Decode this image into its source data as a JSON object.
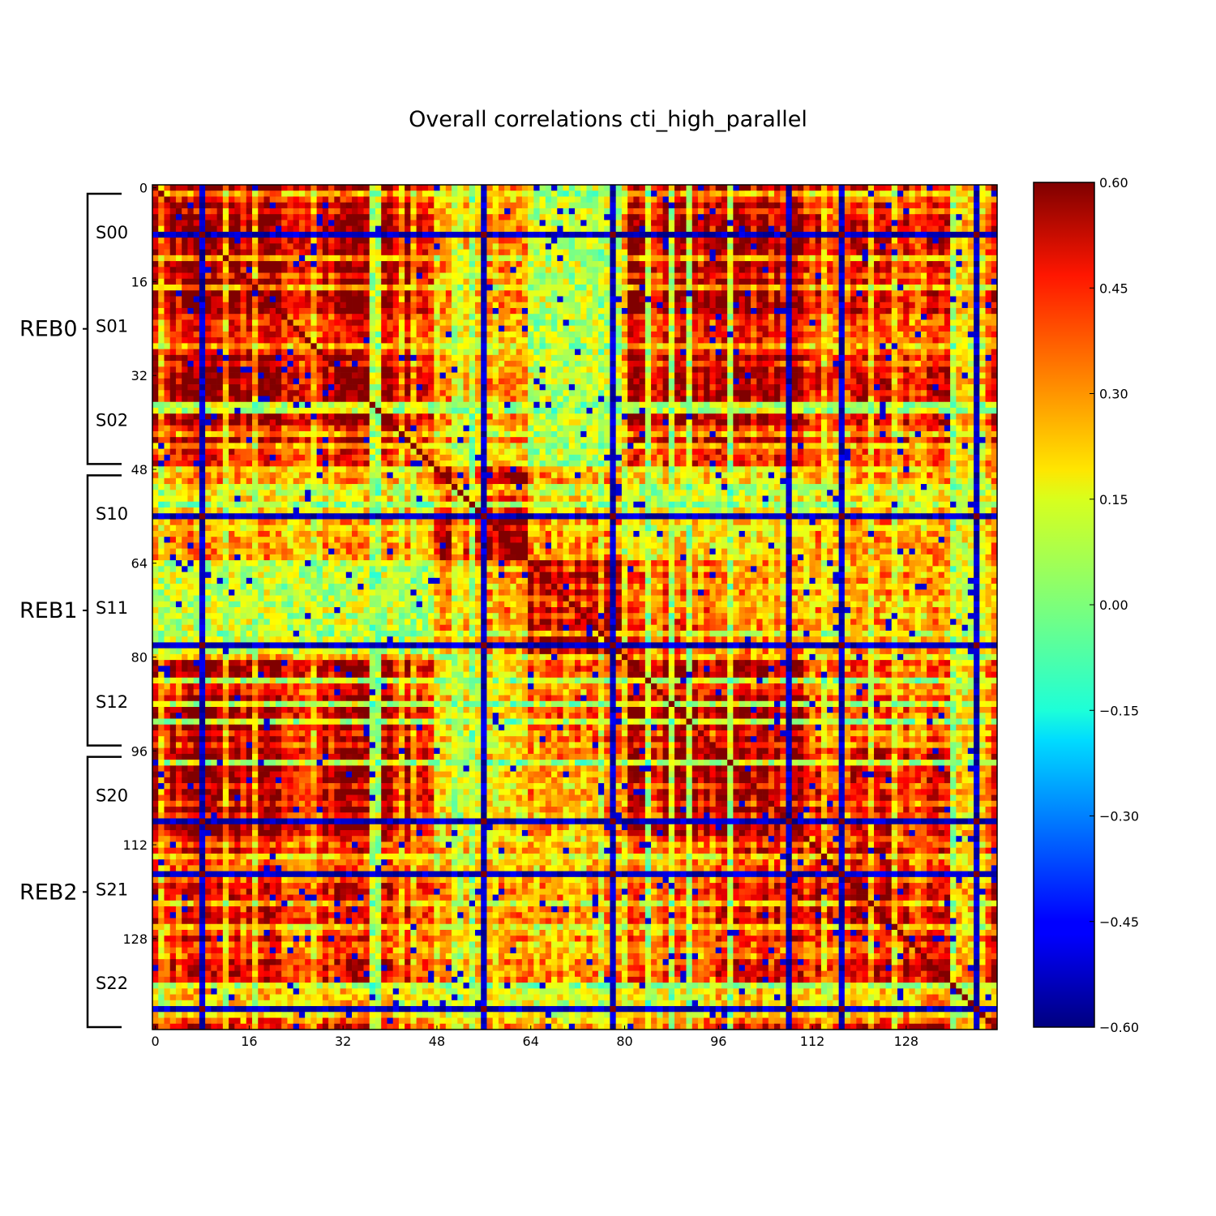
{
  "chart_data": {
    "type": "heatmap",
    "title": "Overall correlations cti_high_parallel",
    "size": 144,
    "xlabel": "",
    "ylabel": "",
    "x_ticks": [
      0,
      16,
      32,
      48,
      64,
      80,
      96,
      112,
      128
    ],
    "y_ticks": [
      0,
      16,
      32,
      48,
      64,
      80,
      96,
      112,
      128
    ],
    "colorbar": {
      "colormap": "jet",
      "vmin": -0.6,
      "vmax": 0.6,
      "ticks": [
        0.6,
        0.45,
        0.3,
        0.15,
        0.0,
        -0.15,
        -0.3,
        -0.45,
        -0.6
      ],
      "tick_labels": [
        "0.60",
        "0.45",
        "0.30",
        "0.15",
        "0.00",
        "−0.15",
        "−0.30",
        "−0.45",
        "−0.60"
      ]
    },
    "groups": [
      {
        "label": "REB0",
        "start": 0,
        "end": 48,
        "sensors": [
          {
            "label": "S00",
            "start": 0,
            "end": 16
          },
          {
            "label": "S01",
            "start": 16,
            "end": 32
          },
          {
            "label": "S02",
            "start": 32,
            "end": 48
          }
        ]
      },
      {
        "label": "REB1",
        "start": 48,
        "end": 96,
        "sensors": [
          {
            "label": "S10",
            "start": 48,
            "end": 64
          },
          {
            "label": "S11",
            "start": 64,
            "end": 80
          },
          {
            "label": "S12",
            "start": 80,
            "end": 96
          }
        ]
      },
      {
        "label": "REB2",
        "start": 96,
        "end": 144,
        "sensors": [
          {
            "label": "S20",
            "start": 96,
            "end": 112
          },
          {
            "label": "S21",
            "start": 112,
            "end": 128
          },
          {
            "label": "S22",
            "start": 128,
            "end": 144
          }
        ]
      }
    ],
    "strong_negative_channels": [
      8,
      56,
      78,
      108,
      117,
      140
    ],
    "block_correlations": {
      "order": [
        "S00",
        "S01",
        "S02",
        "S10",
        "S11",
        "S12",
        "S20",
        "S21",
        "S22"
      ],
      "matrix": [
        [
          0.6,
          0.6,
          0.6,
          0.3,
          0.1,
          0.6,
          0.6,
          0.5,
          0.5
        ],
        [
          0.6,
          0.6,
          0.6,
          0.3,
          0.1,
          0.6,
          0.6,
          0.5,
          0.5
        ],
        [
          0.6,
          0.6,
          0.6,
          0.3,
          0.1,
          0.6,
          0.6,
          0.5,
          0.5
        ],
        [
          0.3,
          0.3,
          0.3,
          0.6,
          0.3,
          0.2,
          0.2,
          0.3,
          0.3
        ],
        [
          0.1,
          0.1,
          0.1,
          0.3,
          0.6,
          0.4,
          0.3,
          0.3,
          0.3
        ],
        [
          0.6,
          0.6,
          0.6,
          0.2,
          0.4,
          0.6,
          0.6,
          0.4,
          0.4
        ],
        [
          0.6,
          0.6,
          0.6,
          0.2,
          0.3,
          0.6,
          0.6,
          0.5,
          0.5
        ],
        [
          0.5,
          0.5,
          0.5,
          0.3,
          0.3,
          0.4,
          0.5,
          0.6,
          0.5
        ],
        [
          0.5,
          0.5,
          0.5,
          0.3,
          0.3,
          0.4,
          0.5,
          0.5,
          0.6
        ]
      ]
    }
  }
}
